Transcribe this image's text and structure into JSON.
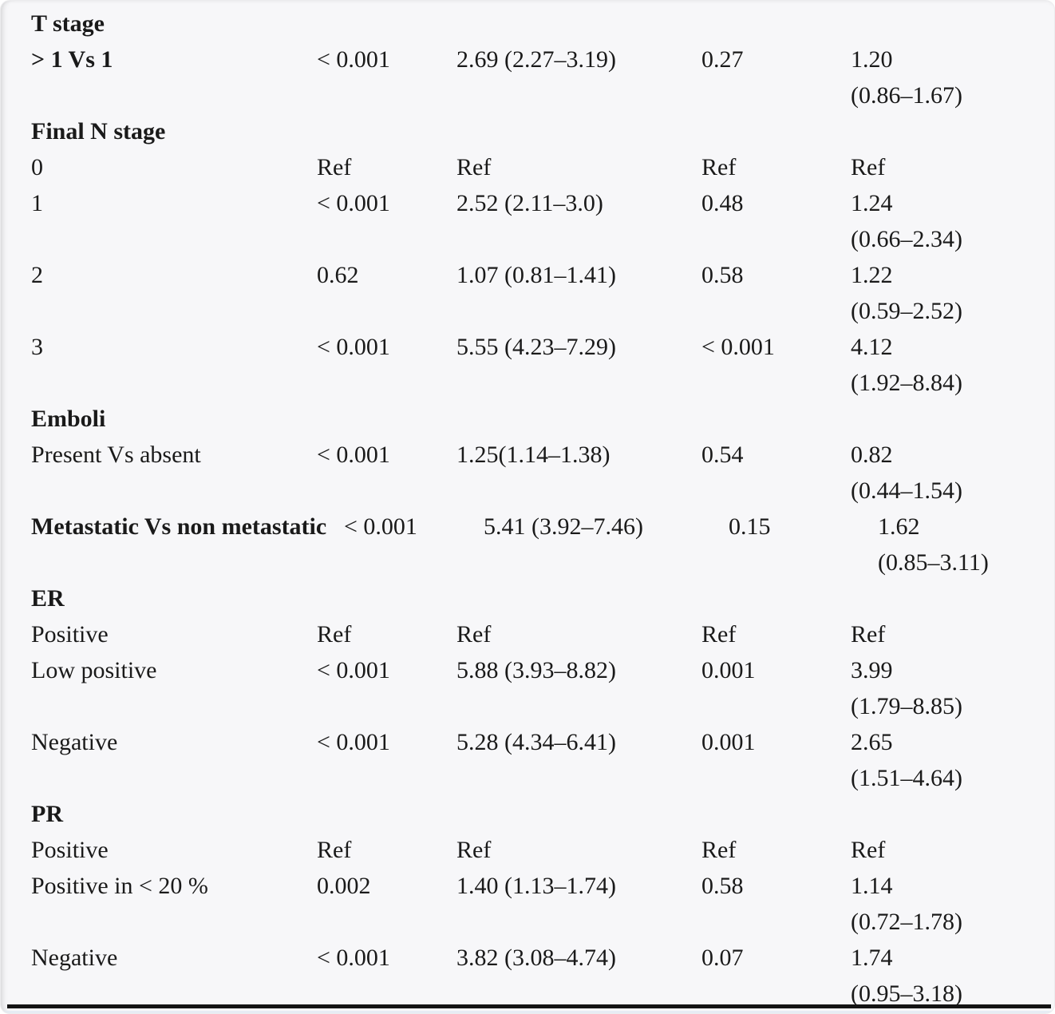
{
  "table": {
    "description": "univariate-multivariate-analysis-table",
    "colors": {
      "background": "#f7f7f9",
      "text": "#1a1a1a",
      "rule": "#141414"
    },
    "rows": [
      {
        "type": "header",
        "label": "T stage"
      },
      {
        "type": "data",
        "bold": true,
        "wrap": false,
        "label": "> 1 Vs 1",
        "p_uni": "< 0.001",
        "hr_uni": "2.69 (2.27–3.19)",
        "p_multi": "0.27",
        "hr_multi": "1.20",
        "ci_multi": "(0.86–1.67)"
      },
      {
        "type": "header",
        "label": "Final N stage"
      },
      {
        "type": "data",
        "bold": false,
        "wrap": false,
        "label": "0",
        "p_uni": "Ref",
        "hr_uni": "Ref",
        "p_multi": "Ref",
        "hr_multi": "Ref",
        "ci_multi": ""
      },
      {
        "type": "data",
        "bold": false,
        "wrap": false,
        "label": "1",
        "p_uni": "< 0.001",
        "hr_uni": "2.52 (2.11–3.0)",
        "p_multi": "0.48",
        "hr_multi": "1.24",
        "ci_multi": "(0.66–2.34)"
      },
      {
        "type": "data",
        "bold": false,
        "wrap": false,
        "label": "2",
        "p_uni": "0.62",
        "hr_uni": "1.07 (0.81–1.41)",
        "p_multi": "0.58",
        "hr_multi": "1.22",
        "ci_multi": "(0.59–2.52)"
      },
      {
        "type": "data",
        "bold": false,
        "wrap": false,
        "label": "3",
        "p_uni": "< 0.001",
        "hr_uni": "5.55 (4.23–7.29)",
        "p_multi": "< 0.001",
        "hr_multi": "4.12",
        "ci_multi": "(1.92–8.84)"
      },
      {
        "type": "header",
        "label": "Emboli"
      },
      {
        "type": "data",
        "bold": false,
        "wrap": false,
        "label": "Present Vs absent",
        "p_uni": "< 0.001",
        "hr_uni": "1.25(1.14–1.38)",
        "p_multi": "0.54",
        "hr_multi": "0.82",
        "ci_multi": "(0.44–1.54)"
      },
      {
        "type": "data",
        "bold": true,
        "wrap": true,
        "label": "Metastatic Vs non metastatic",
        "p_uni": "< 0.001",
        "hr_uni": "5.41 (3.92–7.46)",
        "p_multi": "0.15",
        "hr_multi": "1.62",
        "ci_multi": "(0.85–3.11)"
      },
      {
        "type": "header",
        "label": "ER"
      },
      {
        "type": "data",
        "bold": false,
        "wrap": false,
        "label": "Positive",
        "p_uni": "Ref",
        "hr_uni": "Ref",
        "p_multi": "Ref",
        "hr_multi": "Ref",
        "ci_multi": ""
      },
      {
        "type": "data",
        "bold": false,
        "wrap": false,
        "label": "Low positive",
        "p_uni": "< 0.001",
        "hr_uni": "5.88 (3.93–8.82)",
        "p_multi": "0.001",
        "hr_multi": "3.99",
        "ci_multi": "(1.79–8.85)"
      },
      {
        "type": "data",
        "bold": false,
        "wrap": false,
        "label": "Negative",
        "p_uni": "< 0.001",
        "hr_uni": "5.28 (4.34–6.41)",
        "p_multi": "0.001",
        "hr_multi": "2.65",
        "ci_multi": "(1.51–4.64)"
      },
      {
        "type": "header",
        "label": "PR"
      },
      {
        "type": "data",
        "bold": false,
        "wrap": false,
        "label": "Positive",
        "p_uni": "Ref",
        "hr_uni": "Ref",
        "p_multi": "Ref",
        "hr_multi": "Ref",
        "ci_multi": ""
      },
      {
        "type": "data",
        "bold": false,
        "wrap": false,
        "label": "Positive in < 20 %",
        "p_uni": "0.002",
        "hr_uni": "1.40 (1.13–1.74)",
        "p_multi": "0.58",
        "hr_multi": "1.14",
        "ci_multi": "(0.72–1.78)"
      },
      {
        "type": "data",
        "bold": false,
        "wrap": false,
        "label": "Negative",
        "p_uni": "< 0.001",
        "hr_uni": "3.82 (3.08–4.74)",
        "p_multi": "0.07",
        "hr_multi": "1.74",
        "ci_multi": "(0.95–3.18)"
      }
    ]
  }
}
